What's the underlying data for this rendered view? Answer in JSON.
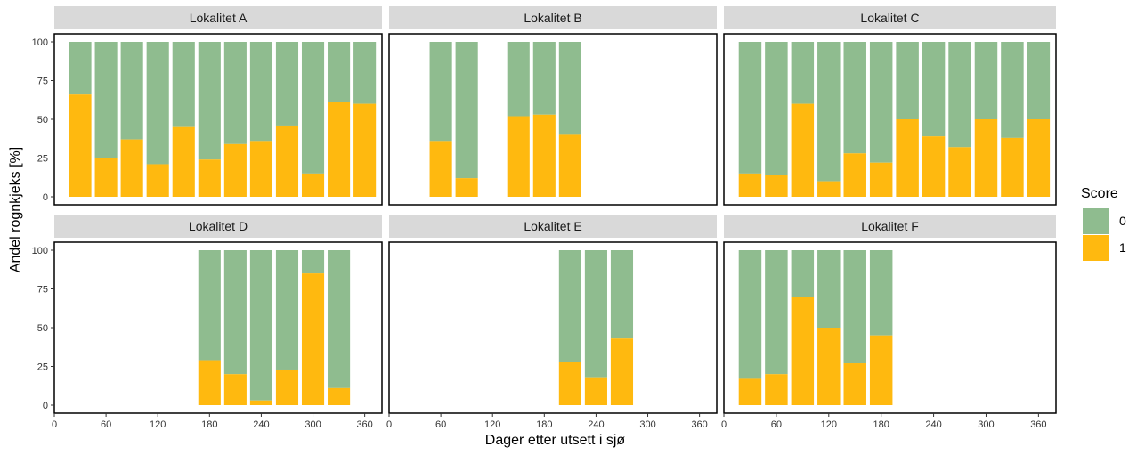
{
  "chart_data": {
    "type": "bar",
    "subtype": "stacked-percent-faceted",
    "xlabel": "Dager etter utsett i sjø",
    "ylabel": "Andel rognkjeks [%]",
    "xlim": [
      0,
      380
    ],
    "ylim": [
      0,
      100
    ],
    "xticks": [
      0,
      60,
      120,
      180,
      240,
      300,
      360
    ],
    "yticks": [
      0,
      25,
      50,
      75,
      100
    ],
    "bar_width_days": 28,
    "legend": {
      "title": "Score",
      "position": "right",
      "items": [
        {
          "label": "0",
          "color": "#8fbc8f"
        },
        {
          "label": "1",
          "color": "#ffb90f"
        }
      ]
    },
    "colors": {
      "score_0": "#8fbc8f",
      "score_1": "#ffb90f",
      "strip": "#d9d9d9"
    },
    "facets": [
      {
        "name": "Lokalitet A",
        "x": [
          30,
          60,
          90,
          120,
          150,
          180,
          210,
          240,
          270,
          300,
          330,
          360
        ],
        "score1": [
          66,
          25,
          37,
          21,
          45,
          24,
          34,
          36,
          46,
          15,
          61,
          60
        ],
        "score0": [
          34,
          75,
          63,
          79,
          55,
          76,
          66,
          64,
          54,
          85,
          39,
          40
        ]
      },
      {
        "name": "Lokalitet B",
        "x": [
          60,
          90,
          150,
          180,
          210
        ],
        "score1": [
          36,
          12,
          52,
          53,
          40
        ],
        "score0": [
          64,
          88,
          48,
          47,
          60
        ]
      },
      {
        "name": "Lokalitet C",
        "x": [
          30,
          60,
          90,
          120,
          150,
          180,
          210,
          240,
          270,
          300,
          330,
          360
        ],
        "score1": [
          15,
          14,
          60,
          10,
          28,
          22,
          50,
          39,
          32,
          50,
          38,
          50
        ],
        "score0": [
          85,
          86,
          40,
          90,
          72,
          78,
          50,
          61,
          68,
          50,
          62,
          50
        ]
      },
      {
        "name": "Lokalitet D",
        "x": [
          180,
          210,
          240,
          270,
          300,
          330
        ],
        "score1": [
          29,
          20,
          3,
          23,
          85,
          11
        ],
        "score0": [
          71,
          80,
          97,
          77,
          15,
          89
        ]
      },
      {
        "name": "Lokalitet E",
        "x": [
          210,
          240,
          270
        ],
        "score1": [
          28,
          18,
          43
        ],
        "score0": [
          72,
          82,
          57
        ]
      },
      {
        "name": "Lokalitet F",
        "x": [
          30,
          60,
          90,
          120,
          150,
          180
        ],
        "score1": [
          17,
          20,
          70,
          50,
          27,
          45
        ],
        "score0": [
          83,
          80,
          30,
          50,
          73,
          55
        ]
      }
    ]
  }
}
